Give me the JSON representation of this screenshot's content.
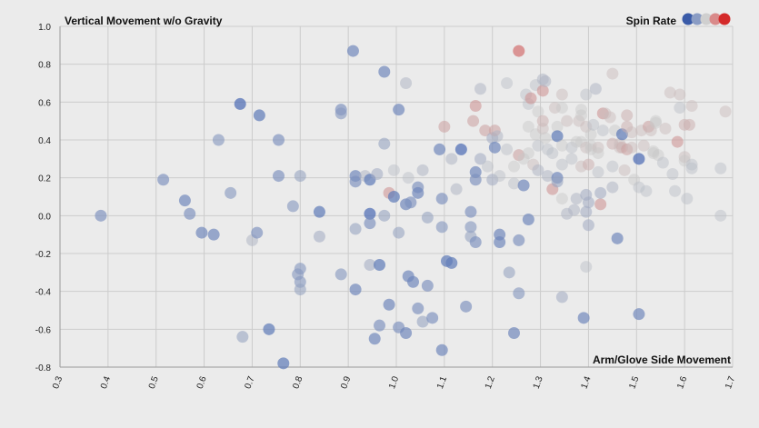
{
  "chart_data": {
    "type": "scatter",
    "title": "Vertical Movement w/o Gravity",
    "xlabel": "Arm/Glove Side Movement",
    "ylabel": "",
    "legend": {
      "title": "Spin Rate",
      "placement": "top-right",
      "colors": [
        "#3a5ba8",
        "#8a9cc4",
        "#cfcfcf",
        "#d98a8a",
        "#d42a2a"
      ]
    },
    "xlim": [
      0.3,
      1.7
    ],
    "ylim": [
      -0.8,
      1.0
    ],
    "x_ticks": [
      "0.3",
      "0.4",
      "0.5",
      "0.6",
      "0.7",
      "0.8",
      "0.9",
      "1.0",
      "1.1",
      "1.2",
      "1.3",
      "1.4",
      "1.5",
      "1.6",
      "1.7"
    ],
    "y_ticks": [
      "1.0",
      "0.8",
      "0.6",
      "0.4",
      "0.2",
      "0.0",
      "-0.2",
      "-0.4",
      "-0.6",
      "-0.8"
    ],
    "grid": true,
    "colors": {
      "low": "#4a6bb5",
      "mid": "#c8c8c8",
      "high": "#d64545",
      "grid": "#cccccc",
      "axis": "#999999"
    },
    "points": [
      {
        "x": 0.385,
        "y": 0.0,
        "s": 0.2
      },
      {
        "x": 0.515,
        "y": 0.19,
        "s": 0.2
      },
      {
        "x": 0.56,
        "y": 0.08,
        "s": 0.15
      },
      {
        "x": 0.57,
        "y": 0.01,
        "s": 0.2
      },
      {
        "x": 0.595,
        "y": -0.09,
        "s": 0.15
      },
      {
        "x": 0.62,
        "y": -0.1,
        "s": 0.15
      },
      {
        "x": 0.63,
        "y": 0.4,
        "s": 0.25
      },
      {
        "x": 0.655,
        "y": 0.12,
        "s": 0.25
      },
      {
        "x": 0.675,
        "y": 0.59,
        "s": 0.05
      },
      {
        "x": 0.68,
        "y": -0.64,
        "s": 0.3
      },
      {
        "x": 0.7,
        "y": -0.13,
        "s": 0.4
      },
      {
        "x": 0.71,
        "y": -0.09,
        "s": 0.2
      },
      {
        "x": 0.715,
        "y": 0.53,
        "s": 0.1
      },
      {
        "x": 0.735,
        "y": -0.6,
        "s": 0.1
      },
      {
        "x": 0.755,
        "y": 0.4,
        "s": 0.2
      },
      {
        "x": 0.755,
        "y": 0.21,
        "s": 0.2
      },
      {
        "x": 0.765,
        "y": -0.78,
        "s": 0.1
      },
      {
        "x": 0.785,
        "y": 0.05,
        "s": 0.25
      },
      {
        "x": 0.795,
        "y": -0.31,
        "s": 0.25
      },
      {
        "x": 0.8,
        "y": 0.21,
        "s": 0.3
      },
      {
        "x": 0.8,
        "y": -0.28,
        "s": 0.25
      },
      {
        "x": 0.8,
        "y": -0.35,
        "s": 0.25
      },
      {
        "x": 0.8,
        "y": -0.39,
        "s": 0.3
      },
      {
        "x": 0.84,
        "y": 0.02,
        "s": 0.1
      },
      {
        "x": 0.84,
        "y": -0.11,
        "s": 0.35
      },
      {
        "x": 0.885,
        "y": 0.56,
        "s": 0.2
      },
      {
        "x": 0.885,
        "y": 0.54,
        "s": 0.25
      },
      {
        "x": 0.885,
        "y": -0.31,
        "s": 0.25
      },
      {
        "x": 0.91,
        "y": 0.87,
        "s": 0.15
      },
      {
        "x": 0.915,
        "y": 0.21,
        "s": 0.15
      },
      {
        "x": 0.915,
        "y": 0.18,
        "s": 0.2
      },
      {
        "x": 0.915,
        "y": -0.07,
        "s": 0.3
      },
      {
        "x": 0.915,
        "y": -0.39,
        "s": 0.15
      },
      {
        "x": 0.935,
        "y": 0.21,
        "s": 0.4
      },
      {
        "x": 0.945,
        "y": 0.19,
        "s": 0.1
      },
      {
        "x": 0.945,
        "y": 0.01,
        "s": 0.05
      },
      {
        "x": 0.945,
        "y": -0.04,
        "s": 0.2
      },
      {
        "x": 0.945,
        "y": -0.26,
        "s": 0.35
      },
      {
        "x": 0.955,
        "y": -0.65,
        "s": 0.15
      },
      {
        "x": 0.96,
        "y": 0.22,
        "s": 0.35
      },
      {
        "x": 0.965,
        "y": -0.26,
        "s": 0.1
      },
      {
        "x": 0.965,
        "y": -0.58,
        "s": 0.2
      },
      {
        "x": 0.975,
        "y": 0.76,
        "s": 0.15
      },
      {
        "x": 0.975,
        "y": 0.38,
        "s": 0.3
      },
      {
        "x": 0.975,
        "y": 0.0,
        "s": 0.3
      },
      {
        "x": 0.985,
        "y": 0.12,
        "s": 0.7
      },
      {
        "x": 0.985,
        "y": -0.47,
        "s": 0.15
      },
      {
        "x": 0.995,
        "y": 0.24,
        "s": 0.45
      },
      {
        "x": 0.995,
        "y": 0.1,
        "s": 0.1
      },
      {
        "x": 1.005,
        "y": 0.56,
        "s": 0.15
      },
      {
        "x": 1.005,
        "y": -0.09,
        "s": 0.3
      },
      {
        "x": 1.005,
        "y": -0.59,
        "s": 0.2
      },
      {
        "x": 1.02,
        "y": 0.7,
        "s": 0.4
      },
      {
        "x": 1.02,
        "y": 0.06,
        "s": 0.15
      },
      {
        "x": 1.02,
        "y": -0.62,
        "s": 0.15
      },
      {
        "x": 1.025,
        "y": 0.2,
        "s": 0.45
      },
      {
        "x": 1.025,
        "y": -0.32,
        "s": 0.15
      },
      {
        "x": 1.03,
        "y": 0.07,
        "s": 0.2
      },
      {
        "x": 1.035,
        "y": -0.35,
        "s": 0.15
      },
      {
        "x": 1.045,
        "y": 0.15,
        "s": 0.2
      },
      {
        "x": 1.045,
        "y": 0.12,
        "s": 0.15
      },
      {
        "x": 1.045,
        "y": -0.49,
        "s": 0.2
      },
      {
        "x": 1.055,
        "y": 0.24,
        "s": 0.4
      },
      {
        "x": 1.055,
        "y": -0.56,
        "s": 0.3
      },
      {
        "x": 1.065,
        "y": -0.01,
        "s": 0.3
      },
      {
        "x": 1.065,
        "y": -0.37,
        "s": 0.2
      },
      {
        "x": 1.075,
        "y": -0.54,
        "s": 0.2
      },
      {
        "x": 1.09,
        "y": 0.35,
        "s": 0.15
      },
      {
        "x": 1.095,
        "y": 0.09,
        "s": 0.2
      },
      {
        "x": 1.095,
        "y": -0.06,
        "s": 0.25
      },
      {
        "x": 1.095,
        "y": -0.71,
        "s": 0.15
      },
      {
        "x": 1.1,
        "y": 0.47,
        "s": 0.65
      },
      {
        "x": 1.105,
        "y": -0.24,
        "s": 0.1
      },
      {
        "x": 1.115,
        "y": 0.3,
        "s": 0.4
      },
      {
        "x": 1.115,
        "y": -0.25,
        "s": 0.1
      },
      {
        "x": 1.125,
        "y": 0.14,
        "s": 0.4
      },
      {
        "x": 1.135,
        "y": 0.35,
        "s": 0.05
      },
      {
        "x": 1.145,
        "y": -0.48,
        "s": 0.2
      },
      {
        "x": 1.155,
        "y": 0.02,
        "s": 0.2
      },
      {
        "x": 1.155,
        "y": -0.06,
        "s": 0.25
      },
      {
        "x": 1.155,
        "y": -0.11,
        "s": 0.3
      },
      {
        "x": 1.16,
        "y": 0.5,
        "s": 0.65
      },
      {
        "x": 1.165,
        "y": 0.58,
        "s": 0.7
      },
      {
        "x": 1.165,
        "y": 0.23,
        "s": 0.15
      },
      {
        "x": 1.165,
        "y": 0.19,
        "s": 0.2
      },
      {
        "x": 1.165,
        "y": -0.14,
        "s": 0.2
      },
      {
        "x": 1.175,
        "y": 0.67,
        "s": 0.4
      },
      {
        "x": 1.175,
        "y": 0.3,
        "s": 0.35
      },
      {
        "x": 1.185,
        "y": 0.45,
        "s": 0.65
      },
      {
        "x": 1.19,
        "y": 0.26,
        "s": 0.45
      },
      {
        "x": 1.2,
        "y": 0.41,
        "s": 0.35
      },
      {
        "x": 1.2,
        "y": 0.19,
        "s": 0.35
      },
      {
        "x": 1.205,
        "y": 0.45,
        "s": 0.65
      },
      {
        "x": 1.205,
        "y": 0.36,
        "s": 0.15
      },
      {
        "x": 1.21,
        "y": 0.42,
        "s": 0.4
      },
      {
        "x": 1.215,
        "y": -0.1,
        "s": 0.15
      },
      {
        "x": 1.215,
        "y": -0.14,
        "s": 0.15
      },
      {
        "x": 1.215,
        "y": 0.21,
        "s": 0.45
      },
      {
        "x": 1.23,
        "y": 0.7,
        "s": 0.45
      },
      {
        "x": 1.23,
        "y": 0.35,
        "s": 0.45
      },
      {
        "x": 1.235,
        "y": -0.3,
        "s": 0.3
      },
      {
        "x": 1.245,
        "y": 0.26,
        "s": 0.5
      },
      {
        "x": 1.245,
        "y": 0.17,
        "s": 0.45
      },
      {
        "x": 1.245,
        "y": -0.62,
        "s": 0.15
      },
      {
        "x": 1.255,
        "y": 0.87,
        "s": 0.85
      },
      {
        "x": 1.255,
        "y": 0.32,
        "s": 0.65
      },
      {
        "x": 1.255,
        "y": -0.13,
        "s": 0.2
      },
      {
        "x": 1.255,
        "y": -0.41,
        "s": 0.25
      },
      {
        "x": 1.265,
        "y": 0.3,
        "s": 0.5
      },
      {
        "x": 1.265,
        "y": 0.16,
        "s": 0.15
      },
      {
        "x": 1.27,
        "y": 0.64,
        "s": 0.45
      },
      {
        "x": 1.275,
        "y": 0.59,
        "s": 0.45
      },
      {
        "x": 1.275,
        "y": 0.47,
        "s": 0.5
      },
      {
        "x": 1.275,
        "y": 0.33,
        "s": 0.5
      },
      {
        "x": 1.275,
        "y": -0.02,
        "s": 0.15
      },
      {
        "x": 1.28,
        "y": 0.62,
        "s": 0.7
      },
      {
        "x": 1.285,
        "y": 0.27,
        "s": 0.55
      },
      {
        "x": 1.29,
        "y": 0.69,
        "s": 0.45
      },
      {
        "x": 1.29,
        "y": 0.43,
        "s": 0.5
      },
      {
        "x": 1.295,
        "y": 0.55,
        "s": 0.5
      },
      {
        "x": 1.295,
        "y": 0.37,
        "s": 0.45
      },
      {
        "x": 1.295,
        "y": 0.24,
        "s": 0.4
      },
      {
        "x": 1.305,
        "y": 0.72,
        "s": 0.4
      },
      {
        "x": 1.305,
        "y": 0.66,
        "s": 0.7
      },
      {
        "x": 1.305,
        "y": 0.5,
        "s": 0.6
      },
      {
        "x": 1.305,
        "y": 0.46,
        "s": 0.55
      },
      {
        "x": 1.31,
        "y": 0.71,
        "s": 0.4
      },
      {
        "x": 1.31,
        "y": 0.41,
        "s": 0.5
      },
      {
        "x": 1.315,
        "y": 0.35,
        "s": 0.45
      },
      {
        "x": 1.315,
        "y": 0.21,
        "s": 0.4
      },
      {
        "x": 1.325,
        "y": 0.33,
        "s": 0.45
      },
      {
        "x": 1.325,
        "y": 0.14,
        "s": 0.7
      },
      {
        "x": 1.33,
        "y": 0.57,
        "s": 0.55
      },
      {
        "x": 1.335,
        "y": 0.47,
        "s": 0.5
      },
      {
        "x": 1.335,
        "y": 0.42,
        "s": 0.1
      },
      {
        "x": 1.335,
        "y": 0.2,
        "s": 0.15
      },
      {
        "x": 1.335,
        "y": 0.18,
        "s": 0.3
      },
      {
        "x": 1.345,
        "y": 0.64,
        "s": 0.55
      },
      {
        "x": 1.345,
        "y": 0.57,
        "s": 0.5
      },
      {
        "x": 1.345,
        "y": 0.37,
        "s": 0.5
      },
      {
        "x": 1.345,
        "y": 0.27,
        "s": 0.45
      },
      {
        "x": 1.345,
        "y": 0.09,
        "s": 0.5
      },
      {
        "x": 1.345,
        "y": -0.43,
        "s": 0.35
      },
      {
        "x": 1.355,
        "y": 0.5,
        "s": 0.55
      },
      {
        "x": 1.355,
        "y": 0.01,
        "s": 0.4
      },
      {
        "x": 1.365,
        "y": 0.36,
        "s": 0.45
      },
      {
        "x": 1.365,
        "y": 0.3,
        "s": 0.45
      },
      {
        "x": 1.37,
        "y": 0.03,
        "s": 0.4
      },
      {
        "x": 1.375,
        "y": 0.09,
        "s": 0.4
      },
      {
        "x": 1.375,
        "y": 0.39,
        "s": 0.5
      },
      {
        "x": 1.38,
        "y": 0.5,
        "s": 0.55
      },
      {
        "x": 1.385,
        "y": 0.56,
        "s": 0.5
      },
      {
        "x": 1.385,
        "y": 0.53,
        "s": 0.5
      },
      {
        "x": 1.385,
        "y": 0.39,
        "s": 0.5
      },
      {
        "x": 1.385,
        "y": 0.26,
        "s": 0.55
      },
      {
        "x": 1.39,
        "y": -0.54,
        "s": 0.15
      },
      {
        "x": 1.395,
        "y": 0.64,
        "s": 0.45
      },
      {
        "x": 1.395,
        "y": 0.47,
        "s": 0.55
      },
      {
        "x": 1.395,
        "y": 0.36,
        "s": 0.55
      },
      {
        "x": 1.395,
        "y": 0.11,
        "s": 0.35
      },
      {
        "x": 1.395,
        "y": 0.02,
        "s": 0.35
      },
      {
        "x": 1.395,
        "y": -0.27,
        "s": 0.45
      },
      {
        "x": 1.4,
        "y": 0.27,
        "s": 0.6
      },
      {
        "x": 1.4,
        "y": 0.07,
        "s": 0.35
      },
      {
        "x": 1.4,
        "y": -0.05,
        "s": 0.35
      },
      {
        "x": 1.405,
        "y": 0.43,
        "s": 0.5
      },
      {
        "x": 1.405,
        "y": 0.37,
        "s": 0.5
      },
      {
        "x": 1.405,
        "y": 0.35,
        "s": 0.5
      },
      {
        "x": 1.41,
        "y": 0.48,
        "s": 0.45
      },
      {
        "x": 1.415,
        "y": 0.67,
        "s": 0.4
      },
      {
        "x": 1.42,
        "y": 0.36,
        "s": 0.55
      },
      {
        "x": 1.42,
        "y": 0.33,
        "s": 0.5
      },
      {
        "x": 1.42,
        "y": 0.23,
        "s": 0.45
      },
      {
        "x": 1.425,
        "y": 0.06,
        "s": 0.7
      },
      {
        "x": 1.425,
        "y": 0.12,
        "s": 0.35
      },
      {
        "x": 1.43,
        "y": 0.45,
        "s": 0.45
      },
      {
        "x": 1.43,
        "y": 0.54,
        "s": 0.7
      },
      {
        "x": 1.435,
        "y": 0.54,
        "s": 0.55
      },
      {
        "x": 1.445,
        "y": 0.52,
        "s": 0.55
      },
      {
        "x": 1.45,
        "y": 0.75,
        "s": 0.55
      },
      {
        "x": 1.45,
        "y": 0.38,
        "s": 0.6
      },
      {
        "x": 1.45,
        "y": 0.26,
        "s": 0.45
      },
      {
        "x": 1.45,
        "y": 0.15,
        "s": 0.4
      },
      {
        "x": 1.455,
        "y": 0.45,
        "s": 0.5
      },
      {
        "x": 1.46,
        "y": -0.12,
        "s": 0.15
      },
      {
        "x": 1.465,
        "y": 0.38,
        "s": 0.55
      },
      {
        "x": 1.465,
        "y": 0.36,
        "s": 0.55
      },
      {
        "x": 1.47,
        "y": 0.43,
        "s": 0.1
      },
      {
        "x": 1.47,
        "y": 0.36,
        "s": 0.6
      },
      {
        "x": 1.475,
        "y": 0.24,
        "s": 0.55
      },
      {
        "x": 1.48,
        "y": 0.53,
        "s": 0.6
      },
      {
        "x": 1.48,
        "y": 0.47,
        "s": 0.6
      },
      {
        "x": 1.48,
        "y": 0.35,
        "s": 0.65
      },
      {
        "x": 1.49,
        "y": 0.44,
        "s": 0.55
      },
      {
        "x": 1.49,
        "y": 0.36,
        "s": 0.55
      },
      {
        "x": 1.495,
        "y": 0.19,
        "s": 0.5
      },
      {
        "x": 1.505,
        "y": 0.3,
        "s": 0.05
      },
      {
        "x": 1.505,
        "y": 0.15,
        "s": 0.45
      },
      {
        "x": 1.505,
        "y": -0.52,
        "s": 0.15
      },
      {
        "x": 1.51,
        "y": 0.45,
        "s": 0.55
      },
      {
        "x": 1.515,
        "y": 0.37,
        "s": 0.55
      },
      {
        "x": 1.52,
        "y": 0.13,
        "s": 0.45
      },
      {
        "x": 1.525,
        "y": 0.47,
        "s": 0.65
      },
      {
        "x": 1.53,
        "y": 0.45,
        "s": 0.55
      },
      {
        "x": 1.535,
        "y": 0.34,
        "s": 0.5
      },
      {
        "x": 1.535,
        "y": 0.33,
        "s": 0.5
      },
      {
        "x": 1.54,
        "y": 0.5,
        "s": 0.5
      },
      {
        "x": 1.54,
        "y": 0.49,
        "s": 0.5
      },
      {
        "x": 1.545,
        "y": 0.32,
        "s": 0.5
      },
      {
        "x": 1.555,
        "y": 0.28,
        "s": 0.45
      },
      {
        "x": 1.56,
        "y": 0.46,
        "s": 0.55
      },
      {
        "x": 1.57,
        "y": 0.65,
        "s": 0.55
      },
      {
        "x": 1.575,
        "y": 0.22,
        "s": 0.45
      },
      {
        "x": 1.58,
        "y": 0.13,
        "s": 0.45
      },
      {
        "x": 1.585,
        "y": 0.39,
        "s": 0.7
      },
      {
        "x": 1.59,
        "y": 0.64,
        "s": 0.55
      },
      {
        "x": 1.59,
        "y": 0.57,
        "s": 0.45
      },
      {
        "x": 1.6,
        "y": 0.48,
        "s": 0.6
      },
      {
        "x": 1.6,
        "y": 0.31,
        "s": 0.55
      },
      {
        "x": 1.6,
        "y": 0.29,
        "s": 0.5
      },
      {
        "x": 1.605,
        "y": 0.09,
        "s": 0.45
      },
      {
        "x": 1.61,
        "y": 0.48,
        "s": 0.6
      },
      {
        "x": 1.615,
        "y": 0.58,
        "s": 0.55
      },
      {
        "x": 1.615,
        "y": 0.27,
        "s": 0.45
      },
      {
        "x": 1.615,
        "y": 0.25,
        "s": 0.45
      },
      {
        "x": 1.675,
        "y": 0.25,
        "s": 0.45
      },
      {
        "x": 1.675,
        "y": 0.0,
        "s": 0.45
      },
      {
        "x": 1.685,
        "y": 0.55,
        "s": 0.55
      }
    ]
  }
}
